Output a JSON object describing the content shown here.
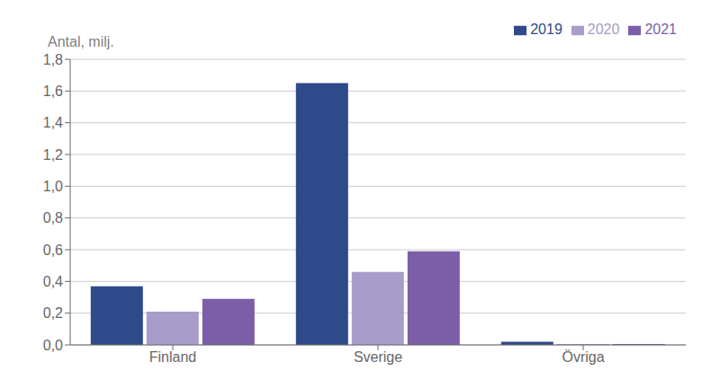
{
  "chart_data": {
    "type": "bar",
    "ylabel": "Antal, milj.",
    "categories": [
      "Finland",
      "Sverige",
      "Övriga"
    ],
    "series": [
      {
        "name": "2019",
        "color": "#2E4A8B",
        "values": [
          0.37,
          1.65,
          0.02
        ]
      },
      {
        "name": "2020",
        "color": "#A89CC8",
        "values": [
          0.21,
          0.46,
          0.005
        ]
      },
      {
        "name": "2021",
        "color": "#7B5EA7",
        "values": [
          0.29,
          0.59,
          0.005
        ]
      }
    ],
    "ylim": [
      0,
      1.8
    ],
    "yticks": [
      {
        "value": 0.0,
        "label": "0,0"
      },
      {
        "value": 0.2,
        "label": "0,2"
      },
      {
        "value": 0.4,
        "label": "0,4"
      },
      {
        "value": 0.6,
        "label": "0,6"
      },
      {
        "value": 0.8,
        "label": "0,8"
      },
      {
        "value": 1.0,
        "label": "1,0"
      },
      {
        "value": 1.2,
        "label": "1,2"
      },
      {
        "value": 1.4,
        "label": "1,4"
      },
      {
        "value": 1.6,
        "label": "1,6"
      },
      {
        "value": 1.8,
        "label": "1,8"
      }
    ],
    "grid": true,
    "legend": "top"
  }
}
